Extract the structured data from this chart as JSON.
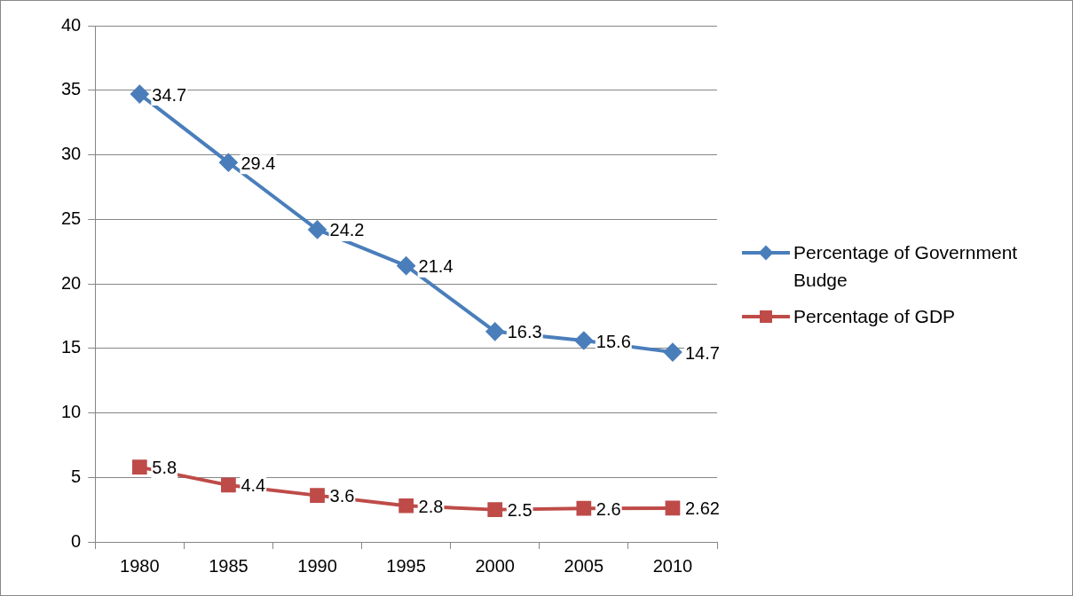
{
  "chart_data": {
    "type": "line",
    "categories": [
      "1980",
      "1985",
      "1990",
      "1995",
      "2000",
      "2005",
      "2010"
    ],
    "series": [
      {
        "name": "Percentage of Government Budge",
        "color": "#4a7ebb",
        "marker": "diamond",
        "values": [
          34.7,
          29.4,
          24.2,
          21.4,
          16.3,
          15.6,
          14.7
        ]
      },
      {
        "name": "Percentage of GDP",
        "color": "#be4b48",
        "marker": "square",
        "values": [
          5.8,
          4.4,
          3.6,
          2.8,
          2.5,
          2.6,
          2.62
        ]
      }
    ],
    "ylim": [
      0,
      40
    ],
    "yticks": [
      0,
      5,
      10,
      15,
      20,
      25,
      30,
      35,
      40
    ],
    "grid": "y",
    "legend": "right",
    "data_labels": true,
    "line_style": "solid"
  }
}
